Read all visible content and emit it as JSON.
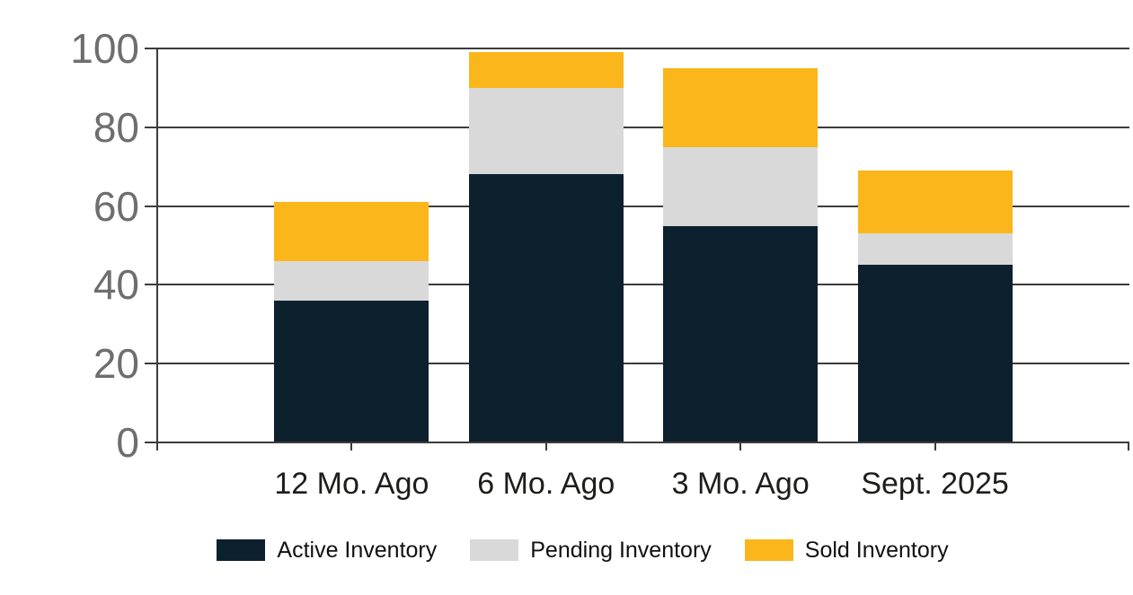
{
  "chart_data": {
    "type": "bar",
    "stacked": true,
    "title": "",
    "xlabel": "",
    "ylabel": "",
    "categories": [
      "12 Mo. Ago",
      "6 Mo. Ago",
      "3 Mo. Ago",
      "Sept. 2025"
    ],
    "series": [
      {
        "name": "Active Inventory",
        "color": "#0d202e",
        "values": [
          36,
          68,
          55,
          45
        ]
      },
      {
        "name": "Pending Inventory",
        "color": "#d9d9d9",
        "values": [
          10,
          22,
          20,
          8
        ]
      },
      {
        "name": "Sold Inventory",
        "color": "#fbb61b",
        "values": [
          15,
          9,
          20,
          16
        ]
      }
    ],
    "stack_totals": [
      61,
      99,
      95,
      69
    ],
    "ylim": [
      0,
      100
    ],
    "yticks": [
      0,
      20,
      40,
      60,
      80,
      100
    ],
    "grid": true,
    "legend_position": "bottom"
  },
  "colors": {
    "active": "#0d202e",
    "pending": "#d9d9d9",
    "sold": "#fbb61b",
    "gridline": "#3c3c3c",
    "y_tick_label": "#6e6e6e",
    "x_tick_label": "#1d1d1b",
    "legend_text": "#111111",
    "background": "#ffffff"
  }
}
